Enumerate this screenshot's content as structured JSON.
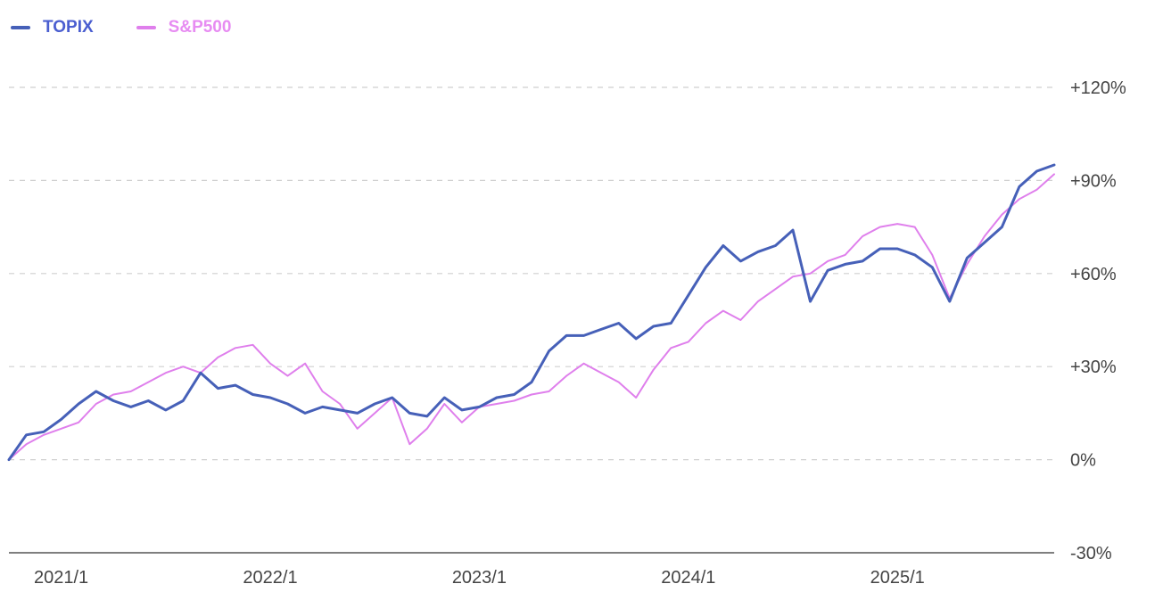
{
  "chart_data": {
    "type": "line",
    "title": "",
    "xlabel": "",
    "ylabel": "",
    "ylim": [
      -30,
      120
    ],
    "x_range": [
      "2020-10",
      "2025-10"
    ],
    "yticks": [
      120,
      90,
      60,
      30,
      0,
      -30
    ],
    "ytick_labels": [
      "+120%",
      "+90%",
      "+60%",
      "+30%",
      "0%",
      "-30%"
    ],
    "xtick_labels": [
      "2021/1",
      "2022/1",
      "2023/1",
      "2024/1",
      "2025/1"
    ],
    "xtick_dates": [
      "2021-01",
      "2022-01",
      "2023-01",
      "2024-01",
      "2025-01"
    ],
    "grid": "horizontal dashed",
    "legend_position": "top-left",
    "series": [
      {
        "name": "TOPIX",
        "color": "#4660b8",
        "points": [
          [
            "2020-10",
            0
          ],
          [
            "2020-11",
            8
          ],
          [
            "2020-12",
            9
          ],
          [
            "2021-01",
            13
          ],
          [
            "2021-02",
            18
          ],
          [
            "2021-03",
            22
          ],
          [
            "2021-04",
            19
          ],
          [
            "2021-05",
            17
          ],
          [
            "2021-06",
            19
          ],
          [
            "2021-07",
            16
          ],
          [
            "2021-08",
            19
          ],
          [
            "2021-09",
            28
          ],
          [
            "2021-10",
            23
          ],
          [
            "2021-11",
            24
          ],
          [
            "2021-12",
            21
          ],
          [
            "2022-01",
            20
          ],
          [
            "2022-02",
            18
          ],
          [
            "2022-03",
            15
          ],
          [
            "2022-04",
            17
          ],
          [
            "2022-05",
            16
          ],
          [
            "2022-06",
            15
          ],
          [
            "2022-07",
            18
          ],
          [
            "2022-08",
            20
          ],
          [
            "2022-09",
            15
          ],
          [
            "2022-10",
            14
          ],
          [
            "2022-11",
            20
          ],
          [
            "2022-12",
            16
          ],
          [
            "2023-01",
            17
          ],
          [
            "2023-02",
            20
          ],
          [
            "2023-03",
            21
          ],
          [
            "2023-04",
            25
          ],
          [
            "2023-05",
            35
          ],
          [
            "2023-06",
            40
          ],
          [
            "2023-07",
            40
          ],
          [
            "2023-08",
            42
          ],
          [
            "2023-09",
            44
          ],
          [
            "2023-10",
            39
          ],
          [
            "2023-11",
            43
          ],
          [
            "2023-12",
            44
          ],
          [
            "2024-01",
            53
          ],
          [
            "2024-02",
            62
          ],
          [
            "2024-03",
            69
          ],
          [
            "2024-04",
            64
          ],
          [
            "2024-05",
            67
          ],
          [
            "2024-06",
            69
          ],
          [
            "2024-07",
            74
          ],
          [
            "2024-08",
            51
          ],
          [
            "2024-09",
            61
          ],
          [
            "2024-10",
            63
          ],
          [
            "2024-11",
            64
          ],
          [
            "2024-12",
            68
          ],
          [
            "2025-01",
            68
          ],
          [
            "2025-02",
            66
          ],
          [
            "2025-03",
            62
          ],
          [
            "2025-04",
            51
          ],
          [
            "2025-05",
            65
          ],
          [
            "2025-06",
            70
          ],
          [
            "2025-07",
            75
          ],
          [
            "2025-08",
            88
          ],
          [
            "2025-09",
            93
          ],
          [
            "2025-10",
            95
          ]
        ]
      },
      {
        "name": "S&P500",
        "color": "#df7fec",
        "points": [
          [
            "2020-10",
            0
          ],
          [
            "2020-11",
            5
          ],
          [
            "2020-12",
            8
          ],
          [
            "2021-01",
            10
          ],
          [
            "2021-02",
            12
          ],
          [
            "2021-03",
            18
          ],
          [
            "2021-04",
            21
          ],
          [
            "2021-05",
            22
          ],
          [
            "2021-06",
            25
          ],
          [
            "2021-07",
            28
          ],
          [
            "2021-08",
            30
          ],
          [
            "2021-09",
            28
          ],
          [
            "2021-10",
            33
          ],
          [
            "2021-11",
            36
          ],
          [
            "2021-12",
            37
          ],
          [
            "2022-01",
            31
          ],
          [
            "2022-02",
            27
          ],
          [
            "2022-03",
            31
          ],
          [
            "2022-04",
            22
          ],
          [
            "2022-05",
            18
          ],
          [
            "2022-06",
            10
          ],
          [
            "2022-07",
            15
          ],
          [
            "2022-08",
            20
          ],
          [
            "2022-09",
            5
          ],
          [
            "2022-10",
            10
          ],
          [
            "2022-11",
            18
          ],
          [
            "2022-12",
            12
          ],
          [
            "2023-01",
            17
          ],
          [
            "2023-02",
            18
          ],
          [
            "2023-03",
            19
          ],
          [
            "2023-04",
            21
          ],
          [
            "2023-05",
            22
          ],
          [
            "2023-06",
            27
          ],
          [
            "2023-07",
            31
          ],
          [
            "2023-08",
            28
          ],
          [
            "2023-09",
            25
          ],
          [
            "2023-10",
            20
          ],
          [
            "2023-11",
            29
          ],
          [
            "2023-12",
            36
          ],
          [
            "2024-01",
            38
          ],
          [
            "2024-02",
            44
          ],
          [
            "2024-03",
            48
          ],
          [
            "2024-04",
            45
          ],
          [
            "2024-05",
            51
          ],
          [
            "2024-06",
            55
          ],
          [
            "2024-07",
            59
          ],
          [
            "2024-08",
            60
          ],
          [
            "2024-09",
            64
          ],
          [
            "2024-10",
            66
          ],
          [
            "2024-11",
            72
          ],
          [
            "2024-12",
            75
          ],
          [
            "2025-01",
            76
          ],
          [
            "2025-02",
            75
          ],
          [
            "2025-03",
            66
          ],
          [
            "2025-04",
            52
          ],
          [
            "2025-05",
            63
          ],
          [
            "2025-06",
            72
          ],
          [
            "2025-07",
            79
          ],
          [
            "2025-08",
            84
          ],
          [
            "2025-09",
            87
          ],
          [
            "2025-10",
            92
          ]
        ]
      }
    ]
  }
}
